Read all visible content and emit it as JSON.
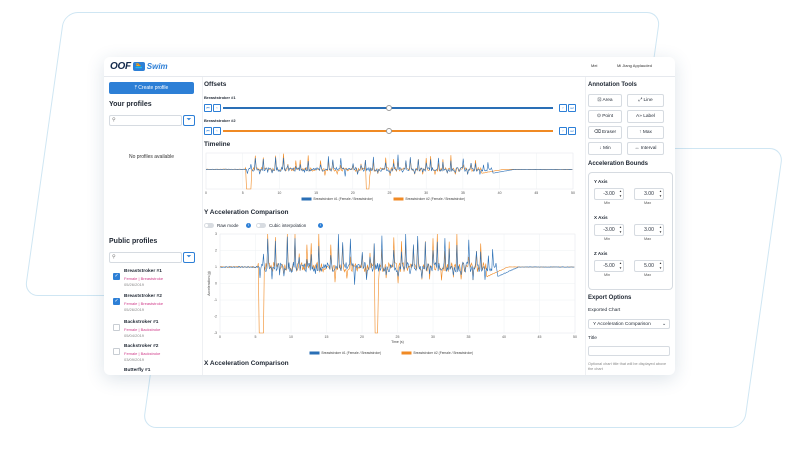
{
  "app": {
    "logo_text": "OOF",
    "logo_badge": "🏊",
    "logo_product": "Swim",
    "top_right_1": "Mei",
    "top_right_2": "Mi Jiang Applauded"
  },
  "left_panel": {
    "create_button": "Create profile",
    "your_profiles_title": "Your profiles",
    "no_profiles_text": "No profiles available",
    "public_profiles_title": "Public profiles",
    "search_icon": "🔍",
    "filter_icon": "filter-icon",
    "public_profiles": [
      {
        "name": "Breaststroker #1",
        "meta": "Female | Breaststroke",
        "date": "05/26/2019",
        "checked": true
      },
      {
        "name": "Breaststroker #2",
        "meta": "Female | Breaststroke",
        "date": "05/26/2019",
        "checked": true
      },
      {
        "name": "Backstroker #1",
        "meta": "Female | Backstroke",
        "date": "05/04/2019",
        "checked": false
      },
      {
        "name": "Backstroker #2",
        "meta": "Female | Backstroke",
        "date": "03/09/2019",
        "checked": false
      },
      {
        "name": "Butterfly #1",
        "meta": "",
        "date": "",
        "checked": false
      }
    ]
  },
  "main": {
    "offsets_title": "Offsets",
    "offset_sliders": [
      {
        "label": "Breaststroker #1",
        "color": "#2a6fb6",
        "value_fraction": 0.5
      },
      {
        "label": "Breaststroker #2",
        "color": "#f08a24",
        "value_fraction": 0.5
      }
    ],
    "btn_left1": "⏮",
    "btn_left2": "‹",
    "btn_right1": "›",
    "btn_right2": "⏭",
    "timeline_title": "Timeline",
    "y_comp_title": "Y Acceleration Comparison",
    "raw_mode_label": "Raw mode",
    "cubic_label": "Cubic interpolation",
    "info_icon": "i",
    "x_comp_title": "X Acceleration Comparison"
  },
  "chart_data": [
    {
      "type": "line",
      "name": "timeline",
      "x_ticks": [
        "0",
        "5",
        "10",
        "15",
        "20",
        "25",
        "30",
        "35",
        "40",
        "45",
        "50"
      ],
      "xlim": [
        0,
        50
      ],
      "series": [
        {
          "name": "Breaststroker #1 (Female / Breaststroke)",
          "color": "#2a6fb6"
        },
        {
          "name": "Breaststroker #2 (Female / Breaststroke)",
          "color": "#f08a24"
        }
      ]
    },
    {
      "type": "line",
      "name": "y-acceleration",
      "ylabel": "Acceleration (g)",
      "xlabel": "Time (s)",
      "xlim": [
        0,
        50
      ],
      "ylim": [
        -3,
        3
      ],
      "x_ticks": [
        "0",
        "5",
        "10",
        "15",
        "20",
        "25",
        "30",
        "35",
        "40",
        "45",
        "50"
      ],
      "y_ticks": [
        "3",
        "2",
        "1",
        "0",
        "-1",
        "-2",
        "-3"
      ],
      "series": [
        {
          "name": "Breaststroker #1 (Female / Breaststroke)",
          "color": "#2a6fb6"
        },
        {
          "name": "Breaststroker #2 (Female / Breaststroke)",
          "color": "#f08a24"
        }
      ]
    }
  ],
  "right_panel": {
    "annotation_title": "Annotation Tools",
    "tools": [
      {
        "icon": "⊡",
        "label": "Area"
      },
      {
        "icon": "⤢",
        "label": "Line"
      },
      {
        "icon": "⊙",
        "label": "Point"
      },
      {
        "icon": "A»",
        "label": "Label"
      },
      {
        "icon": "⌫",
        "label": "Eraser"
      },
      {
        "icon": "↑",
        "label": "Max"
      },
      {
        "icon": "↓",
        "label": "Min"
      },
      {
        "icon": "↔",
        "label": "Interval"
      }
    ],
    "bounds_title": "Acceleration Bounds",
    "axes": [
      {
        "label": "Y Axis",
        "min": "-3.00",
        "max": "3.00"
      },
      {
        "label": "X Axis",
        "min": "-3.00",
        "max": "3.00"
      },
      {
        "label": "Z Axis",
        "min": "-5.00",
        "max": "5.00"
      }
    ],
    "min_label": "Min",
    "max_label": "Max",
    "export_title": "Export Options",
    "exported_chart_label": "Exported Chart",
    "exported_chart_value": "Y Acceleration Comparison",
    "title_label": "Title",
    "title_hint": "Optional chart title that will be displayed above the chart"
  }
}
